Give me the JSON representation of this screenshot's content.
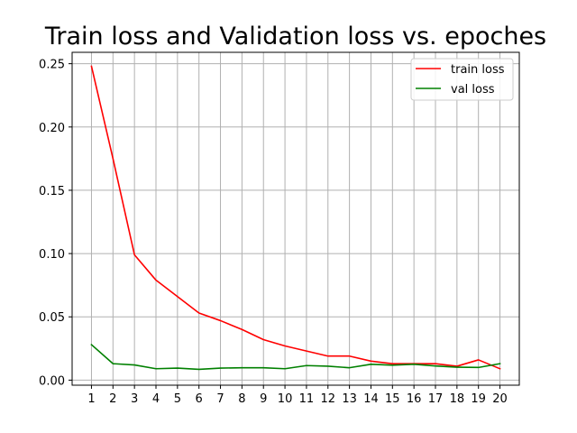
{
  "chart_data": {
    "type": "line",
    "title": "Train loss and Validation loss vs. epoches",
    "xlabel": "",
    "ylabel": "",
    "x": [
      1,
      2,
      3,
      4,
      5,
      6,
      7,
      8,
      9,
      10,
      11,
      12,
      13,
      14,
      15,
      16,
      17,
      18,
      19,
      20
    ],
    "x_tick_labels": [
      "1",
      "2",
      "3",
      "4",
      "5",
      "6",
      "7",
      "8",
      "9",
      "10",
      "11",
      "12",
      "13",
      "14",
      "15",
      "16",
      "17",
      "18",
      "19",
      "20"
    ],
    "ylim": [
      -0.004,
      0.259
    ],
    "y_ticks": [
      0.0,
      0.05,
      0.1,
      0.15,
      0.2,
      0.25
    ],
    "y_tick_labels": [
      "0.00",
      "0.05",
      "0.10",
      "0.15",
      "0.20",
      "0.25"
    ],
    "grid": true,
    "legend_position": "top-right",
    "series": [
      {
        "name": "train loss",
        "color": "#ff0000",
        "values": [
          0.248,
          0.175,
          0.099,
          0.079,
          0.066,
          0.053,
          0.047,
          0.04,
          0.032,
          0.027,
          0.023,
          0.019,
          0.019,
          0.015,
          0.013,
          0.013,
          0.013,
          0.011,
          0.016,
          0.009
        ]
      },
      {
        "name": "val loss",
        "color": "#008000",
        "values": [
          0.028,
          0.013,
          0.012,
          0.009,
          0.0095,
          0.0085,
          0.0095,
          0.0098,
          0.0098,
          0.009,
          0.0115,
          0.011,
          0.0098,
          0.0125,
          0.0118,
          0.0125,
          0.0112,
          0.0102,
          0.01,
          0.013
        ]
      }
    ]
  }
}
